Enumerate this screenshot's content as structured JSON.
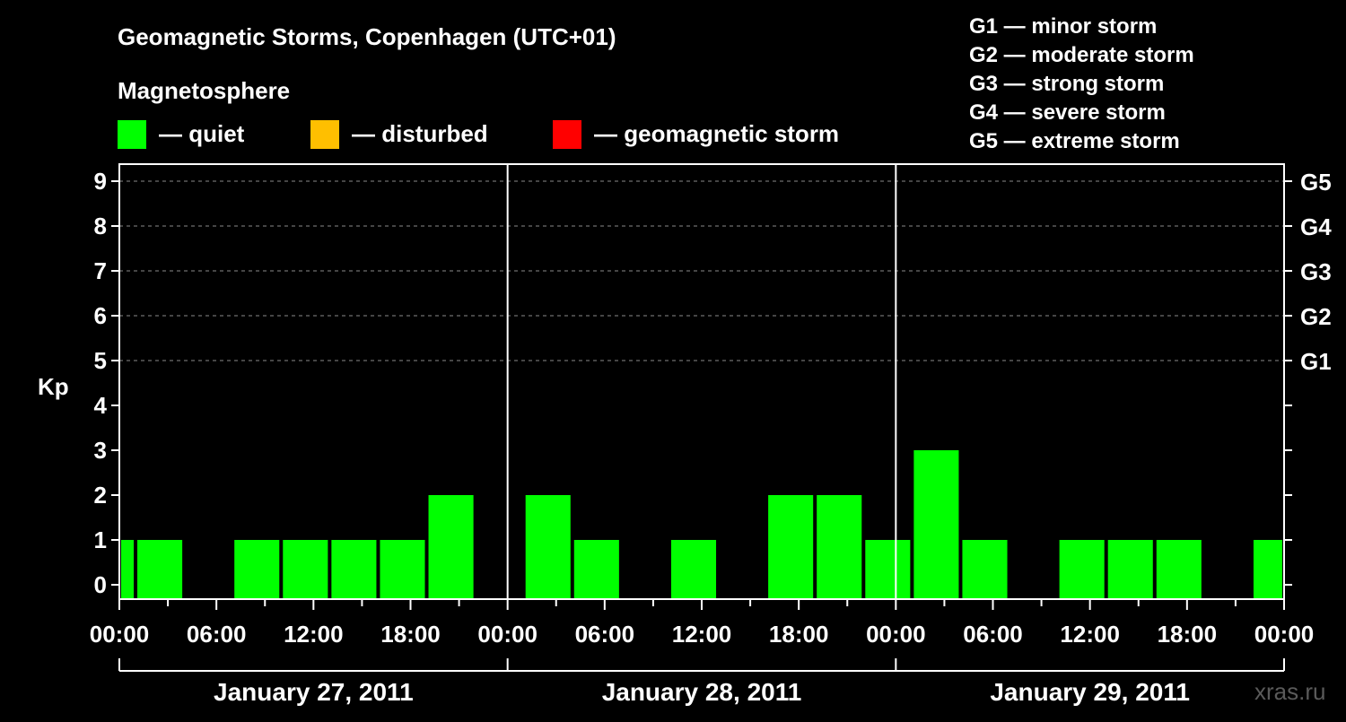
{
  "chart_data": {
    "type": "bar",
    "title": "Geomagnetic Storms, Copenhagen (UTC+01)",
    "subtitle": "Magnetosphere",
    "ylabel": "Kp",
    "ylim": [
      0,
      9
    ],
    "yticks": [
      "0",
      "1",
      "2",
      "3",
      "4",
      "5",
      "6",
      "7",
      "8",
      "9"
    ],
    "right_axis_ticks": [
      {
        "kp": 5,
        "label": "G1"
      },
      {
        "kp": 6,
        "label": "G2"
      },
      {
        "kp": 7,
        "label": "G3"
      },
      {
        "kp": 8,
        "label": "G4"
      },
      {
        "kp": 9,
        "label": "G5"
      }
    ],
    "grid_dashed_at": [
      5,
      6,
      7,
      8,
      9
    ],
    "x_range_hours": [
      0,
      72
    ],
    "xtick_labels": [
      "00:00",
      "06:00",
      "12:00",
      "18:00",
      "00:00",
      "06:00",
      "12:00",
      "18:00",
      "00:00",
      "06:00",
      "12:00",
      "18:00",
      "00:00"
    ],
    "days": [
      "January 27, 2011",
      "January 28, 2011",
      "January 29, 2011"
    ],
    "status_legend": [
      {
        "label": "— quiet",
        "color": "#00ff00"
      },
      {
        "label": "— disturbed",
        "color": "#ffbf00"
      },
      {
        "label": "— geomagnetic storm",
        "color": "#ff0000"
      }
    ],
    "storm_scale": [
      "G1 — minor storm",
      "G2 — moderate storm",
      "G3 — strong storm",
      "G4 — severe storm",
      "G5 — extreme storm"
    ],
    "bars": [
      {
        "start": 0,
        "end": 1,
        "kp": 1
      },
      {
        "start": 1,
        "end": 4,
        "kp": 1
      },
      {
        "start": 4,
        "end": 7,
        "kp": 0
      },
      {
        "start": 7,
        "end": 10,
        "kp": 1
      },
      {
        "start": 10,
        "end": 13,
        "kp": 1
      },
      {
        "start": 13,
        "end": 16,
        "kp": 1
      },
      {
        "start": 16,
        "end": 19,
        "kp": 1
      },
      {
        "start": 19,
        "end": 22,
        "kp": 2
      },
      {
        "start": 22,
        "end": 25,
        "kp": 0
      },
      {
        "start": 25,
        "end": 28,
        "kp": 2
      },
      {
        "start": 28,
        "end": 31,
        "kp": 1
      },
      {
        "start": 31,
        "end": 34,
        "kp": 0
      },
      {
        "start": 34,
        "end": 37,
        "kp": 1
      },
      {
        "start": 37,
        "end": 40,
        "kp": 0
      },
      {
        "start": 40,
        "end": 43,
        "kp": 2
      },
      {
        "start": 43,
        "end": 46,
        "kp": 2
      },
      {
        "start": 46,
        "end": 49,
        "kp": 1
      },
      {
        "start": 49,
        "end": 52,
        "kp": 3
      },
      {
        "start": 52,
        "end": 55,
        "kp": 1
      },
      {
        "start": 55,
        "end": 58,
        "kp": 0
      },
      {
        "start": 58,
        "end": 61,
        "kp": 1
      },
      {
        "start": 61,
        "end": 64,
        "kp": 1
      },
      {
        "start": 64,
        "end": 67,
        "kp": 1
      },
      {
        "start": 67,
        "end": 70,
        "kp": 0
      },
      {
        "start": 70,
        "end": 72,
        "kp": 1
      }
    ],
    "bar_color": "#00ff00"
  },
  "watermark": "xras.ru"
}
